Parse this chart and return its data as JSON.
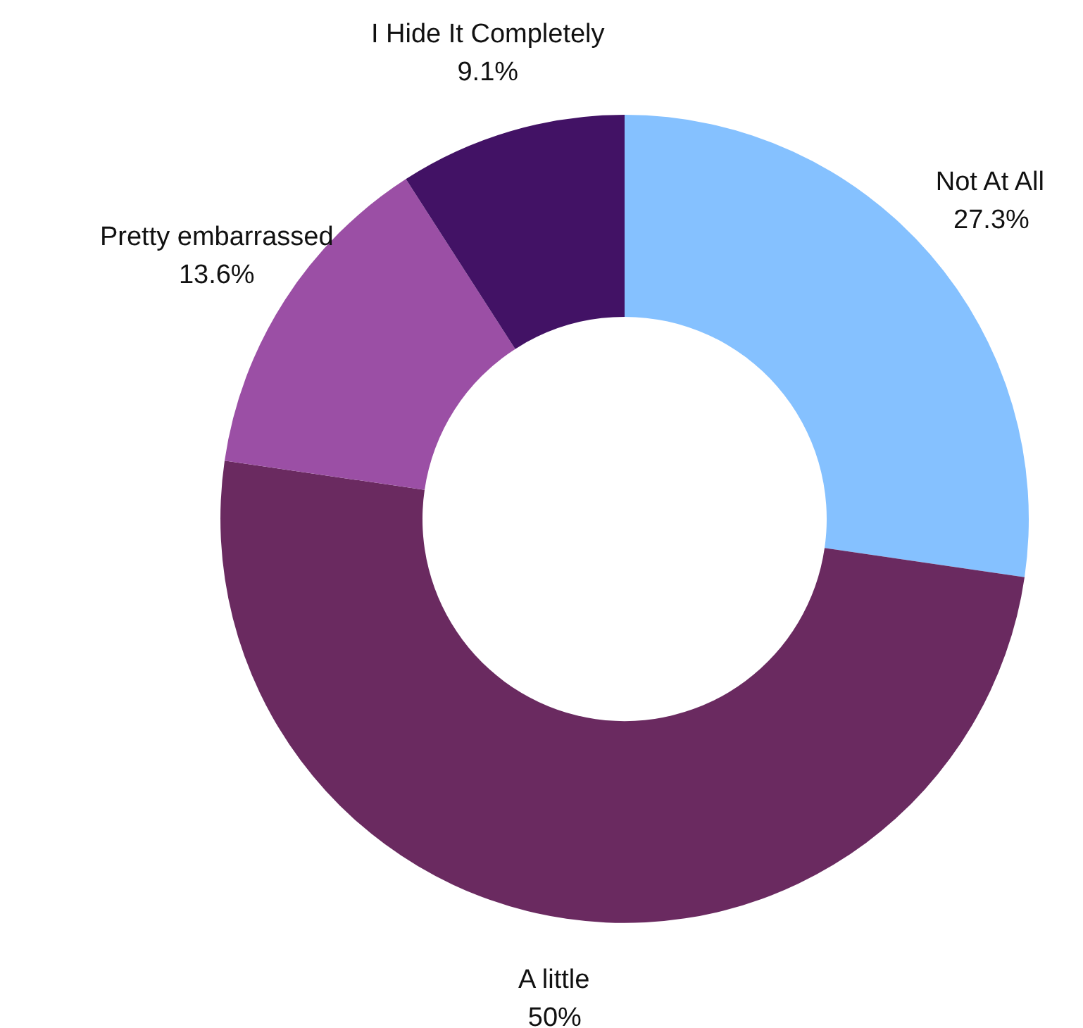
{
  "chart_data": {
    "type": "donut",
    "categories": [
      "Not At All",
      "A little",
      "Pretty embarrassed",
      "I Hide It Completely"
    ],
    "values": [
      27.3,
      50,
      13.6,
      9.1
    ],
    "value_labels": [
      "27.3%",
      "50%",
      "13.6%",
      "9.1%"
    ],
    "colors": [
      "#85c1ff",
      "#6a2a60",
      "#9b4fa5",
      "#421265"
    ]
  }
}
